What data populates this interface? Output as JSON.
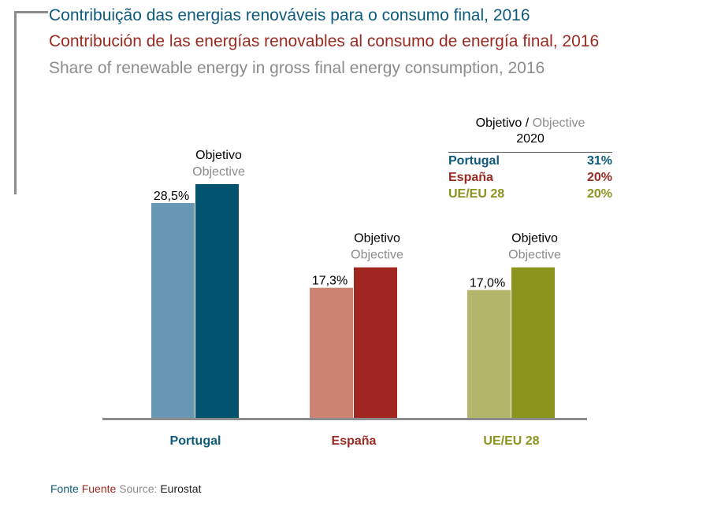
{
  "titles": {
    "pt": "Contribuição das energias renováveis para o consumo final, 2016",
    "es": "Contribución de las energías renovables al consumo de energía final, 2016",
    "en": "Share of renewable energy in gross final energy consumption, 2016"
  },
  "target_legend": {
    "header_pt_es": "Objetivo /",
    "header_en": "Objective",
    "year": "2020",
    "rows": [
      {
        "label": "Portugal",
        "value": "31%",
        "color": "#0d5a7a"
      },
      {
        "label": "España",
        "value": "20%",
        "color": "#9a2a22"
      },
      {
        "label": "UE/EU 28",
        "value": "20%",
        "color": "#8b951e"
      }
    ]
  },
  "source": {
    "fonte": "Fonte",
    "fuente": "Fuente",
    "source": "Source:",
    "value": "Eurostat"
  },
  "chart_data": {
    "type": "bar",
    "title": "Share of renewable energy in gross final energy consumption, 2016",
    "categories": [
      "Portugal",
      "España",
      "UE/EU 28"
    ],
    "category_colors": [
      "#0d5a7a",
      "#9a2a22",
      "#8b951e"
    ],
    "series": [
      {
        "name": "2016",
        "values": [
          28.5,
          17.3,
          17.0
        ],
        "labels": [
          "28,5%",
          "17,3%",
          "17,0%"
        ],
        "colors": [
          "#6797b2",
          "#cc8574",
          "#b1b66a"
        ]
      },
      {
        "name": "Objetivo / Objective 2020",
        "values": [
          31,
          20,
          20
        ],
        "colors": [
          "#02536f",
          "#a0271f",
          "#8b951e"
        ],
        "annotation_pt_es": "Objetivo",
        "annotation_en": "Objective"
      }
    ],
    "ylim": [
      0,
      31
    ],
    "xlabel": "",
    "ylabel": "",
    "grid": false
  }
}
